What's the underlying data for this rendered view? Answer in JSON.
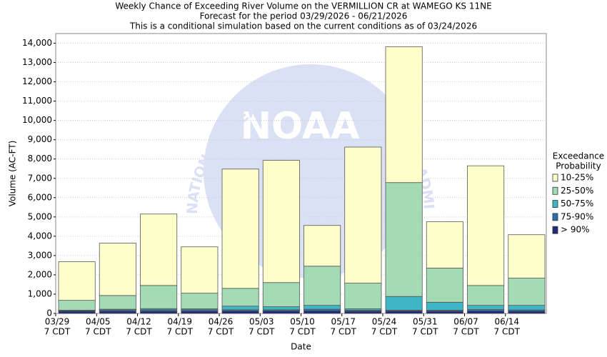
{
  "chart_data": {
    "type": "bar",
    "stacked": true,
    "title": [
      "Weekly Chance of Exceeding River Volume on the VERMILLION CR at WAMEGO KS 11NE",
      "Forecast for the period 03/29/2026 - 06/21/2026",
      "This is a conditional simulation based on the current conditions as of 03/24/2026"
    ],
    "watermark": "NOAA",
    "watermark_ring": "NATIONAL OCEANIC AND ATMOSPHERIC ADMINISTRATION",
    "x_label": "Date",
    "y_label": "Volume (AC-FT)",
    "legend_title": [
      "Exceedance",
      "Probability"
    ],
    "categories": [
      [
        "03/29",
        "7 CDT"
      ],
      [
        "04/05",
        "7 CDT"
      ],
      [
        "04/12",
        "7 CDT"
      ],
      [
        "04/19",
        "7 CDT"
      ],
      [
        "04/26",
        "7 CDT"
      ],
      [
        "05/03",
        "7 CDT"
      ],
      [
        "05/10",
        "7 CDT"
      ],
      [
        "05/17",
        "7 CDT"
      ],
      [
        "05/24",
        "7 CDT"
      ],
      [
        "05/31",
        "7 CDT"
      ],
      [
        "06/07",
        "7 CDT"
      ],
      [
        "06/14",
        "7 CDT"
      ]
    ],
    "series": [
      {
        "name": "> 90%",
        "color": "#1f2a7a",
        "values": [
          120,
          120,
          120,
          120,
          130,
          130,
          140,
          120,
          130,
          120,
          130,
          120
        ]
      },
      {
        "name": "75-90%",
        "color": "#2f6fa8",
        "values": [
          30,
          60,
          70,
          70,
          60,
          60,
          80,
          50,
          40,
          50,
          70,
          60
        ]
      },
      {
        "name": "50-75%",
        "color": "#3fb6c6",
        "values": [
          20,
          40,
          60,
          50,
          190,
          160,
          200,
          70,
          710,
          410,
          220,
          240
        ]
      },
      {
        "name": "25-50%",
        "color": "#a3dbb5",
        "values": [
          510,
          710,
          1200,
          810,
          920,
          1250,
          2030,
          1330,
          5900,
          1770,
          1030,
          1410
        ]
      },
      {
        "name": "10-25%",
        "color": "#ffffcc",
        "values": [
          2000,
          2710,
          3700,
          2400,
          6180,
          6330,
          2110,
          7050,
          7040,
          2400,
          6200,
          2250
        ]
      }
    ],
    "ylim": [
      0,
      14500
    ],
    "yticks": [
      0,
      {
        "value": 1000,
        "label": "1,000"
      },
      {
        "value": 2000,
        "label": "2,000"
      },
      {
        "value": 3000,
        "label": "3,000"
      },
      {
        "value": 4000,
        "label": "4,000"
      },
      {
        "value": 5000,
        "label": "5,000"
      },
      {
        "value": 6000,
        "label": "6,000"
      },
      {
        "value": 7000,
        "label": "7,000"
      },
      {
        "value": 8000,
        "label": "8,000"
      },
      {
        "value": 9000,
        "label": "9,000"
      },
      {
        "value": 10000,
        "label": "10,000"
      },
      {
        "value": 11000,
        "label": "11,000"
      },
      {
        "value": 12000,
        "label": "12,000"
      },
      {
        "value": 13000,
        "label": "13,000"
      },
      {
        "value": 14000,
        "label": "14,000"
      }
    ],
    "grid": true,
    "legend_position": "right"
  }
}
